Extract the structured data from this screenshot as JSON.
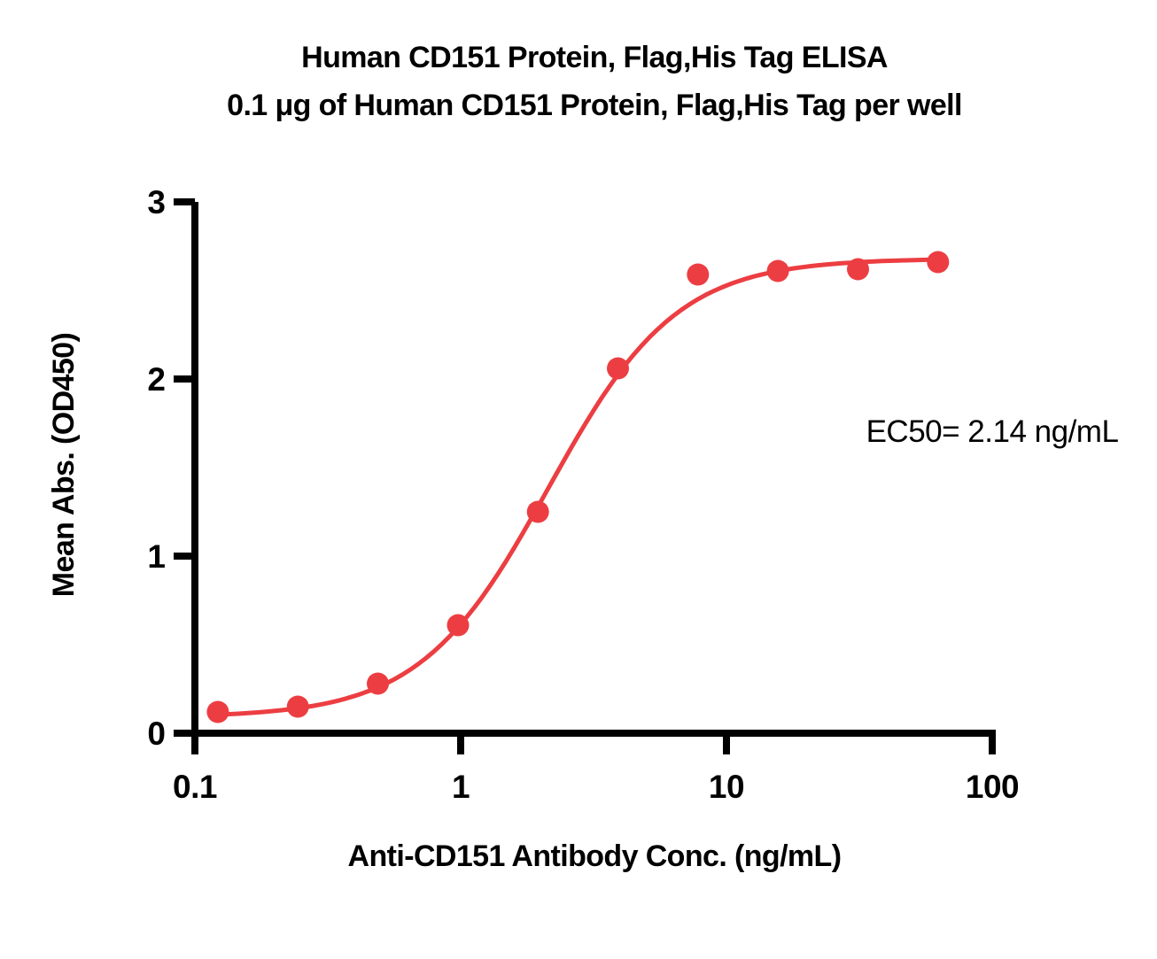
{
  "chart_data": {
    "type": "scatter",
    "title": "Human CD151 Protein, Flag,His Tag ELISA",
    "subtitle": "0.1 μg of Human CD151 Protein, Flag,His Tag per well",
    "xlabel": "Anti-CD151 Antibody Conc. (ng/mL)",
    "ylabel": "Mean Abs. (OD450)",
    "x_scale": "log10",
    "xlim": [
      0.1,
      100
    ],
    "ylim": [
      0,
      3
    ],
    "x_ticks": [
      "0.1",
      "1",
      "10",
      "100"
    ],
    "y_ticks": [
      "0",
      "1",
      "2",
      "3"
    ],
    "grid": false,
    "legend": "none",
    "points": {
      "x": [
        0.122,
        0.244,
        0.488,
        0.977,
        1.953,
        3.906,
        7.813,
        15.625,
        31.25,
        62.5
      ],
      "y": [
        0.12,
        0.15,
        0.28,
        0.61,
        1.25,
        2.06,
        2.59,
        2.61,
        2.62,
        2.66
      ]
    },
    "curve_fit": {
      "model": "4PL",
      "bottom": 0.09,
      "top": 2.68,
      "ec50": 2.14,
      "hill": 1.8
    },
    "ec50_text": "EC50= 2.14 ng/mL",
    "colors": {
      "series": "#EC3E42",
      "axis": "#000000",
      "text": "#000000"
    }
  }
}
